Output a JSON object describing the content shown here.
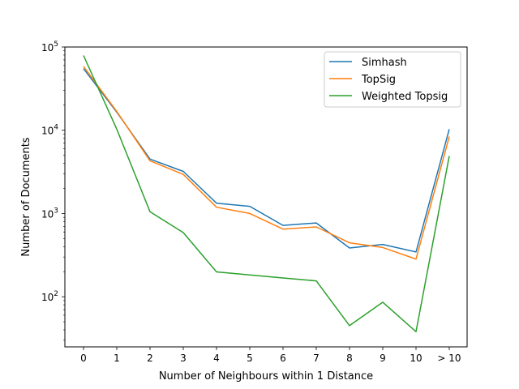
{
  "chart_data": {
    "type": "line",
    "title": "",
    "xlabel": "Number of Neighbours within 1 Distance",
    "ylabel": "Number of Documents",
    "yscale": "log",
    "ylim": [
      25,
      100000
    ],
    "categories": [
      "0",
      "1",
      "2",
      "3",
      "4",
      "5",
      "6",
      "7",
      "8",
      "9",
      "10",
      "> 10"
    ],
    "ytick_values": [
      100,
      1000,
      10000,
      100000
    ],
    "ytick_bases": [
      "10",
      "10",
      "10",
      "10"
    ],
    "ytick_exponents": [
      "2",
      "3",
      "4",
      "5"
    ],
    "legend_position": "top-right",
    "series": [
      {
        "name": "Simhash",
        "color": "#1f77b4",
        "values": [
          55000,
          16500,
          4500,
          3200,
          1330,
          1220,
          720,
          770,
          385,
          425,
          345,
          10300
        ]
      },
      {
        "name": "TopSig",
        "color": "#ff7f0e",
        "values": [
          58500,
          16800,
          4300,
          2950,
          1190,
          1000,
          650,
          690,
          445,
          390,
          283,
          8400
        ]
      },
      {
        "name": "Weighted Topsig",
        "color": "#2ca02c",
        "values": [
          79000,
          10300,
          1050,
          590,
          199,
          183,
          168,
          155,
          45,
          86,
          38,
          4900
        ]
      }
    ]
  }
}
